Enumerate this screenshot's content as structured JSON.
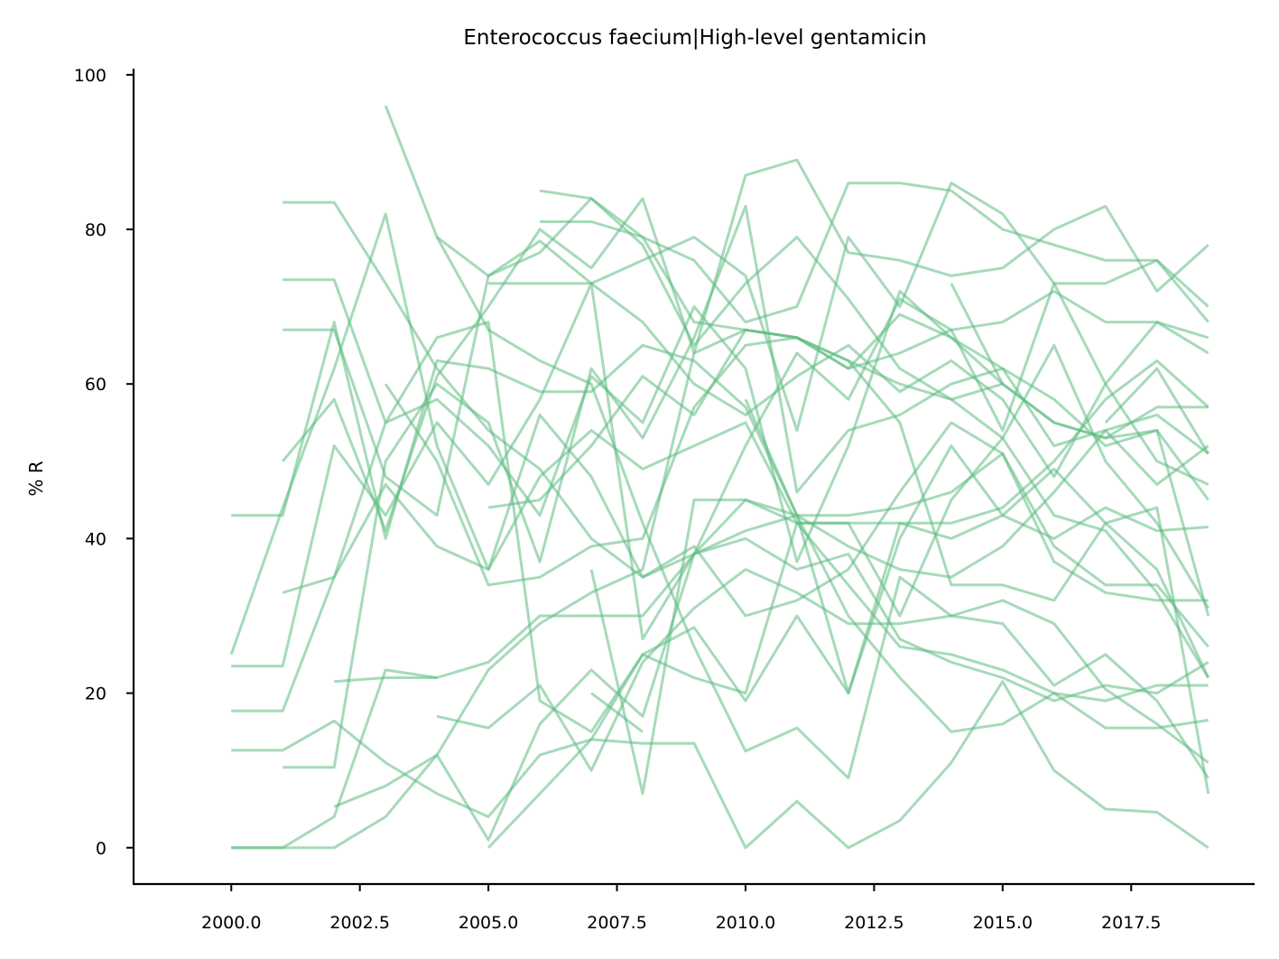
{
  "chart_data": {
    "type": "line",
    "title": "Enterococcus faecium|High-level gentamicin",
    "xlabel": "",
    "ylabel": "% R",
    "xlim": [
      1998.1,
      2019.9
    ],
    "ylim": [
      -4.7,
      100.8
    ],
    "xticks": [
      2000,
      2002.5,
      2005,
      2007.5,
      2010,
      2012.5,
      2015,
      2017.5
    ],
    "xtick_labels": [
      "2000.0",
      "2002.5",
      "2005.0",
      "2007.5",
      "2010.0",
      "2012.5",
      "2015.0",
      "2017.5"
    ],
    "yticks": [
      0,
      20,
      40,
      60,
      80,
      100
    ],
    "ytick_labels": [
      "0",
      "20",
      "40",
      "60",
      "80",
      "100"
    ],
    "grid": false,
    "line_color": "#5dbb7f",
    "line_opacity": 0.55,
    "series": [
      {
        "x": [
          2000,
          2001,
          2002,
          2003,
          2004,
          2005,
          2006,
          2007,
          2008,
          2009,
          2010,
          2011,
          2012,
          2013,
          2014,
          2015,
          2016,
          2017,
          2018,
          2019
        ],
        "values": [
          0,
          0,
          0,
          4,
          12,
          1,
          16,
          23,
          17,
          38,
          41,
          43,
          39,
          36,
          35,
          39,
          46,
          54,
          56,
          51
        ]
      },
      {
        "x": [
          2000,
          2001,
          2002,
          2003,
          2004,
          2005,
          2006,
          2007,
          2008,
          2009,
          2010,
          2011,
          2012,
          2013,
          2014,
          2015,
          2016,
          2017,
          2018,
          2019
        ],
        "values": [
          0,
          0,
          4,
          23,
          22,
          24,
          30,
          30,
          30,
          38,
          45,
          42,
          42,
          42,
          42,
          44,
          50,
          58,
          63,
          57
        ]
      },
      {
        "x": [
          2000,
          2001,
          2002,
          2003,
          2004,
          2005,
          2006,
          2007,
          2008,
          2009,
          2010,
          2011,
          2012,
          2013,
          2014,
          2015,
          2016,
          2017,
          2018,
          2019
        ],
        "values": [
          25,
          44,
          62,
          82,
          52,
          36,
          56,
          48,
          35,
          38,
          40,
          36,
          38,
          27,
          24,
          22,
          19,
          21,
          20,
          24
        ]
      },
      {
        "x": [
          2000,
          2001,
          2002,
          2003,
          2004,
          2005,
          2006,
          2007,
          2008,
          2009,
          2010,
          2011,
          2012,
          2013,
          2014,
          2015,
          2016,
          2017,
          2018,
          2019
        ],
        "values": [
          43,
          43,
          68,
          40,
          63,
          62,
          59,
          59,
          65,
          63,
          57,
          43,
          20,
          40,
          52,
          43,
          49,
          42,
          36,
          22
        ]
      },
      {
        "x": [
          2000,
          2001,
          2002,
          2003,
          2004,
          2005,
          2006,
          2007,
          2008,
          2009,
          2010,
          2011,
          2012,
          2013,
          2014,
          2015,
          2016,
          2017,
          2018,
          2019
        ],
        "values": [
          23.5,
          23.5,
          52,
          43,
          55,
          47,
          58,
          73,
          27,
          38,
          52,
          64,
          58,
          71,
          67,
          54,
          73,
          60,
          68,
          66
        ]
      },
      {
        "x": [
          2000,
          2001,
          2002,
          2003,
          2004,
          2005,
          2006,
          2007,
          2008,
          2009,
          2010,
          2011,
          2012,
          2013,
          2014,
          2015,
          2016,
          2017,
          2018,
          2019
        ],
        "values": [
          17.7,
          17.7,
          35,
          55,
          58,
          52,
          43,
          61,
          55,
          70,
          62,
          37,
          52,
          72,
          66,
          62,
          52,
          54,
          47,
          52
        ]
      },
      {
        "x": [
          2000,
          2001,
          2002,
          2003,
          2004,
          2005,
          2006,
          2007,
          2008,
          2009,
          2010,
          2011,
          2012,
          2013,
          2014,
          2015,
          2016,
          2017,
          2018,
          2019
        ],
        "values": [
          12.6,
          12.6,
          16.4,
          11,
          7,
          4,
          12,
          14,
          25,
          28.5,
          19,
          30,
          20,
          42,
          40,
          43,
          40,
          44,
          41,
          41.5
        ]
      },
      {
        "x": [
          2001,
          2002,
          2003,
          2004,
          2005,
          2006,
          2007,
          2008,
          2009,
          2010,
          2011,
          2012,
          2013,
          2014,
          2015,
          2016,
          2017,
          2018,
          2019
        ],
        "values": [
          10.4,
          10.4,
          50,
          60,
          55,
          37,
          62,
          53,
          66,
          83,
          46,
          54,
          56,
          60,
          62,
          58,
          52,
          54,
          30
        ]
      },
      {
        "x": [
          2001,
          2002,
          2003,
          2004,
          2005,
          2006,
          2007,
          2008,
          2009,
          2010,
          2011,
          2012,
          2013,
          2014,
          2015,
          2016,
          2017,
          2018,
          2019
        ],
        "values": [
          33,
          35,
          47,
          39,
          36,
          48,
          54,
          49,
          52,
          55,
          42,
          42,
          30,
          45,
          53,
          65,
          50,
          42,
          31
        ]
      },
      {
        "x": [
          2001,
          2002,
          2003,
          2004,
          2005,
          2006,
          2007,
          2008,
          2009,
          2010,
          2011,
          2012,
          2013,
          2014,
          2015,
          2016,
          2017,
          2018,
          2019
        ],
        "values": [
          83.5,
          83.5,
          73,
          62,
          54,
          49,
          40,
          35,
          39,
          30,
          32,
          36,
          46,
          55,
          51,
          37,
          33,
          32,
          32
        ]
      },
      {
        "x": [
          2001,
          2002,
          2003,
          2004,
          2005,
          2006,
          2007,
          2008,
          2009,
          2010,
          2011,
          2012,
          2013,
          2014,
          2015,
          2016,
          2017,
          2018,
          2019
        ],
        "values": [
          73.5,
          73.5,
          55,
          66,
          68,
          19,
          15,
          25,
          22,
          20,
          42,
          34,
          26,
          25,
          23,
          20,
          19,
          21,
          21
        ]
      },
      {
        "x": [
          2001,
          2002,
          2003,
          2004,
          2005,
          2006,
          2007,
          2008,
          2009,
          2010,
          2011,
          2012,
          2013,
          2014,
          2015,
          2016,
          2017,
          2018,
          2019
        ],
        "values": [
          67,
          67,
          48,
          43,
          74,
          77,
          84,
          78,
          65,
          73,
          79,
          71,
          62,
          58,
          53,
          43,
          41,
          33,
          22
        ]
      },
      {
        "x": [
          2001,
          2002,
          2003,
          2004,
          2005,
          2006,
          2007,
          2008,
          2009,
          2010,
          2011,
          2012,
          2013,
          2014,
          2015,
          2016,
          2017,
          2018,
          2019
        ],
        "values": [
          50,
          58,
          41,
          61,
          70,
          80,
          75,
          84,
          64,
          87,
          89,
          77,
          76,
          74,
          75,
          80,
          83,
          72,
          78
        ]
      },
      {
        "x": [
          2002,
          2003,
          2004,
          2005,
          2006,
          2007,
          2008,
          2009,
          2010,
          2011,
          2012,
          2013,
          2014,
          2015,
          2016,
          2017,
          2018,
          2019
        ],
        "values": [
          5.3,
          8,
          12,
          23,
          29,
          33,
          36,
          64,
          67,
          66,
          63,
          60,
          58,
          60,
          55,
          53,
          57,
          57
        ]
      },
      {
        "x": [
          2002,
          2003,
          2004
        ],
        "values": [
          21.5,
          22,
          22
        ]
      },
      {
        "x": [
          2003,
          2004,
          2005,
          2006,
          2007,
          2008,
          2009,
          2010,
          2011,
          2012,
          2013,
          2014,
          2015,
          2016,
          2017,
          2018,
          2019
        ],
        "values": [
          96,
          79,
          67,
          63,
          60,
          42,
          26,
          12.5,
          15.5,
          9,
          35,
          30,
          29,
          21,
          25,
          19,
          9
        ]
      },
      {
        "x": [
          2003,
          2004,
          2005,
          2006,
          2007,
          2008,
          2009,
          2010,
          2011,
          2012,
          2013,
          2014,
          2015,
          2016,
          2017,
          2018,
          2019
        ],
        "values": [
          60,
          50,
          34,
          35,
          39,
          40,
          57,
          65,
          66,
          62,
          69,
          66,
          60,
          55,
          53,
          54,
          45
        ]
      },
      {
        "x": [
          2004,
          2005,
          2006,
          2007,
          2008,
          2009,
          2010,
          2011,
          2012,
          2013,
          2014,
          2015,
          2016,
          2017,
          2018,
          2019
        ],
        "values": [
          79,
          74,
          78.5,
          73,
          76,
          79,
          74,
          54,
          79,
          70,
          86,
          82,
          73,
          73,
          76,
          70
        ]
      },
      {
        "x": [
          2004,
          2005,
          2006,
          2007,
          2008,
          2009,
          2010,
          2011,
          2012,
          2013,
          2014,
          2015,
          2016,
          2017,
          2018,
          2019
        ],
        "values": [
          17,
          15.5,
          21,
          10,
          24,
          31,
          36,
          33,
          29,
          29,
          30,
          32,
          29,
          20.5,
          16,
          11
        ]
      },
      {
        "x": [
          2005,
          2006,
          2007,
          2008,
          2009,
          2010,
          2011,
          2012,
          2013,
          2014,
          2015,
          2016,
          2017,
          2018,
          2019
        ],
        "values": [
          0,
          7,
          14,
          13.5,
          13.5,
          0,
          6,
          0,
          3.5,
          11,
          21.5,
          10,
          5,
          4.6,
          0
        ]
      },
      {
        "x": [
          2005,
          2006,
          2007,
          2008,
          2009,
          2010,
          2011,
          2012,
          2013,
          2014,
          2015,
          2016,
          2017,
          2018,
          2019
        ],
        "values": [
          73,
          73,
          73,
          68,
          60,
          56,
          61,
          65,
          59,
          63,
          58,
          48,
          60,
          50,
          47
        ]
      },
      {
        "x": [
          2005,
          2006,
          2007,
          2008,
          2009,
          2010,
          2011,
          2012,
          2013,
          2014,
          2015,
          2016,
          2017,
          2018,
          2019
        ],
        "values": [
          44,
          45,
          52,
          61,
          56,
          67,
          66,
          62,
          64,
          67,
          68,
          72,
          68,
          68,
          64
        ]
      },
      {
        "x": [
          2006,
          2007,
          2008,
          2009,
          2010,
          2011,
          2012,
          2013,
          2014,
          2015,
          2016,
          2017,
          2018,
          2019
        ],
        "values": [
          85,
          84,
          79,
          76,
          68,
          70,
          86,
          86,
          85,
          80,
          78,
          76,
          76,
          68
        ]
      },
      {
        "x": [
          2006,
          2007,
          2008,
          2009,
          2010,
          2011,
          2012,
          2013,
          2014,
          2015,
          2016,
          2017,
          2018,
          2019
        ],
        "values": [
          81,
          81,
          79,
          68,
          67,
          66,
          63,
          55,
          34,
          34,
          32,
          42,
          44,
          7
        ]
      },
      {
        "x": [
          2007,
          2008,
          2009,
          2010,
          2011,
          2012,
          2013,
          2014,
          2015,
          2016,
          2017,
          2018,
          2019
        ],
        "values": [
          36,
          7,
          45,
          45,
          43,
          43,
          44,
          46,
          51,
          39,
          34,
          34,
          26
        ]
      },
      {
        "x": [
          2007,
          2008
        ],
        "values": [
          20,
          15
        ]
      },
      {
        "x": [
          2010,
          2011,
          2012,
          2013,
          2014,
          2015,
          2016,
          2017,
          2018,
          2019
        ],
        "values": [
          58,
          43,
          30,
          22,
          15,
          16,
          20,
          15.5,
          15.5,
          16.5
        ]
      },
      {
        "x": [
          2014,
          2015
        ],
        "values": [
          73,
          60
        ]
      },
      {
        "x": [
          2017,
          2018,
          2019
        ],
        "values": [
          55,
          62,
          51
        ]
      }
    ]
  }
}
